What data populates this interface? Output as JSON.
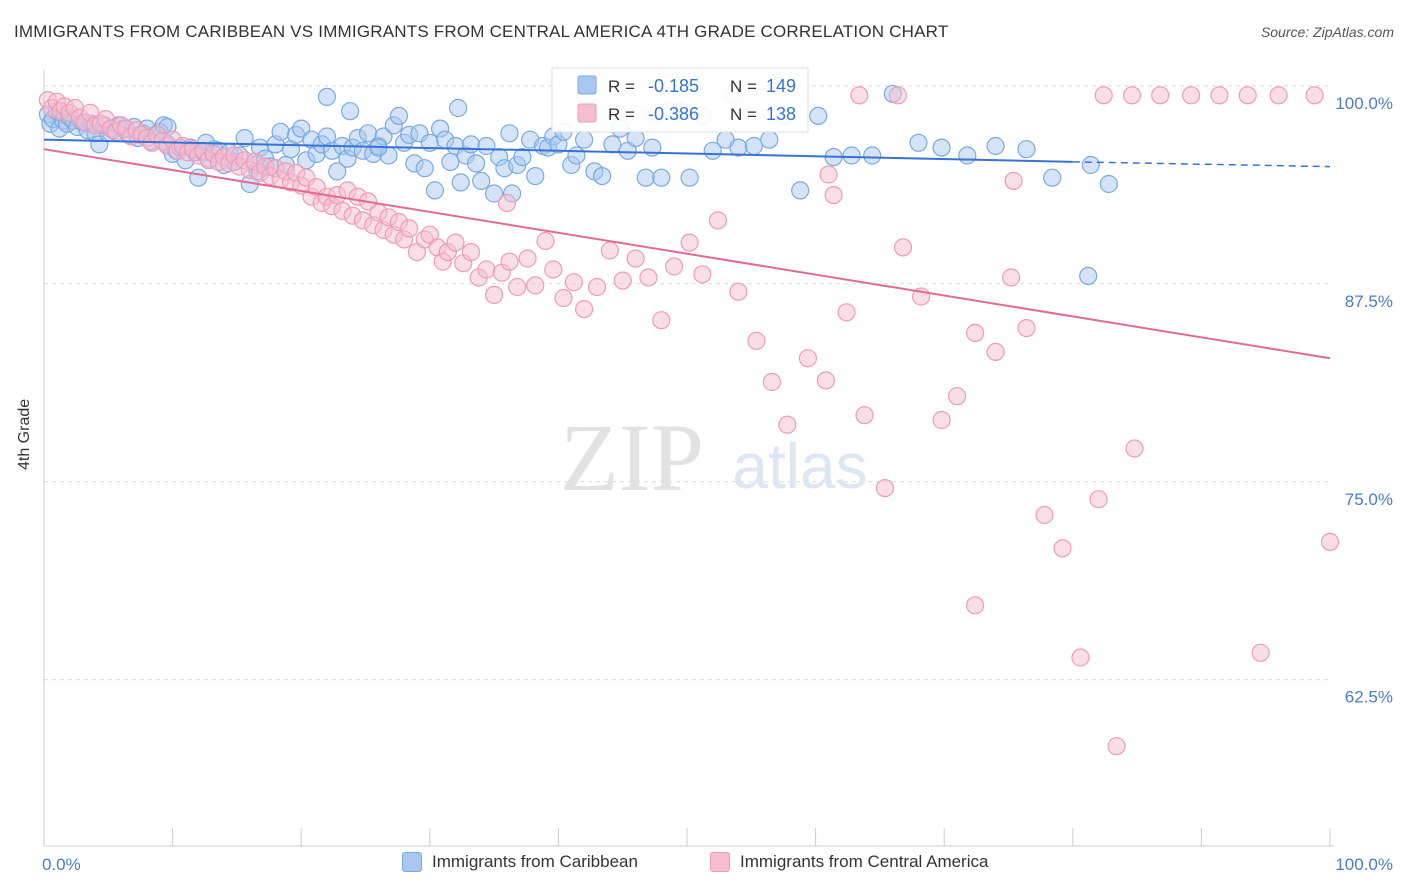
{
  "title": "IMMIGRANTS FROM CARIBBEAN VS IMMIGRANTS FROM CENTRAL AMERICA 4TH GRADE CORRELATION CHART",
  "source": "Source: ZipAtlas.com",
  "watermark": {
    "zip": "ZIP",
    "atlas": "atlas"
  },
  "colors": {
    "blue_fill": "#a9c8ef",
    "blue_stroke": "#7aaae0",
    "blue_line": "#3574d4",
    "pink_fill": "#f5bed0",
    "pink_stroke": "#ee9bb8",
    "pink_line": "#e26a94",
    "tick_label": "#4a7cc9",
    "grid": "#d9d9d9"
  },
  "legend": {
    "rows": [
      {
        "r_label": "R =",
        "r_value": "-0.185",
        "n_label": "N =",
        "n_value": "149"
      },
      {
        "r_label": "R =",
        "r_value": "-0.386",
        "n_label": "N =",
        "n_value": "138"
      }
    ]
  },
  "bottom_legend": [
    "Immigrants from Caribbean",
    "Immigrants from Central America"
  ],
  "chart_data": {
    "type": "scatter",
    "title": "IMMIGRANTS FROM CARIBBEAN VS IMMIGRANTS FROM CENTRAL AMERICA 4TH GRADE CORRELATION CHART",
    "xlabel": "",
    "ylabel": "4th Grade",
    "xlim": [
      0,
      100
    ],
    "ylim": [
      52,
      101
    ],
    "x_tick_labels": [
      "0.0%",
      "100.0%"
    ],
    "y_ticks": [
      100.0,
      87.5,
      75.0,
      62.5
    ],
    "y_tick_labels": [
      "100.0%",
      "87.5%",
      "75.0%",
      "62.5%"
    ],
    "grid": true,
    "legend_position": "top-center",
    "series": [
      {
        "name": "Immigrants from Caribbean",
        "color": "#a9c8ef",
        "R": -0.185,
        "N": 149,
        "trend": {
          "x": [
            0,
            80
          ],
          "y": [
            96.6,
            95.2
          ],
          "dashed_to": [
            100,
            94.9
          ]
        },
        "points": [
          [
            0.3,
            98.2
          ],
          [
            0.5,
            97.6
          ],
          [
            0.7,
            97.9
          ],
          [
            1.0,
            98.4
          ],
          [
            1.2,
            97.3
          ],
          [
            1.5,
            97.8
          ],
          [
            1.8,
            97.6
          ],
          [
            2.0,
            98.0
          ],
          [
            2.3,
            97.8
          ],
          [
            2.6,
            97.4
          ],
          [
            3.0,
            97.7
          ],
          [
            3.4,
            97.2
          ],
          [
            3.7,
            97.6
          ],
          [
            4.0,
            97.0
          ],
          [
            4.3,
            96.3
          ],
          [
            4.7,
            97.5
          ],
          [
            5.0,
            97.0
          ],
          [
            5.4,
            97.2
          ],
          [
            5.8,
            97.5
          ],
          [
            6.2,
            97.3
          ],
          [
            6.6,
            96.9
          ],
          [
            7.0,
            97.4
          ],
          [
            7.3,
            96.7
          ],
          [
            7.7,
            97.0
          ],
          [
            8.0,
            97.3
          ],
          [
            8.3,
            96.5
          ],
          [
            8.7,
            96.9
          ],
          [
            9.0,
            97.1
          ],
          [
            9.3,
            97.5
          ],
          [
            9.6,
            96.3
          ],
          [
            10.0,
            95.7
          ],
          [
            10.3,
            95.9
          ],
          [
            10.6,
            96.1
          ],
          [
            11.0,
            95.3
          ],
          [
            11.4,
            96.1
          ],
          [
            11.8,
            95.8
          ],
          [
            12.0,
            94.2
          ],
          [
            12.4,
            95.8
          ],
          [
            12.8,
            95.4
          ],
          [
            13.2,
            96.0
          ],
          [
            13.6,
            95.9
          ],
          [
            14.0,
            95.0
          ],
          [
            14.4,
            95.8
          ],
          [
            14.8,
            95.2
          ],
          [
            15.2,
            95.6
          ],
          [
            15.6,
            96.7
          ],
          [
            16.0,
            93.8
          ],
          [
            16.4,
            95.0
          ],
          [
            16.8,
            96.1
          ],
          [
            17.2,
            95.4
          ],
          [
            17.6,
            94.9
          ],
          [
            18.0,
            96.3
          ],
          [
            18.4,
            97.1
          ],
          [
            18.8,
            95.0
          ],
          [
            19.2,
            96.0
          ],
          [
            19.6,
            96.9
          ],
          [
            20.0,
            97.3
          ],
          [
            20.4,
            95.3
          ],
          [
            20.8,
            96.6
          ],
          [
            21.2,
            95.7
          ],
          [
            21.6,
            96.3
          ],
          [
            22.0,
            96.8
          ],
          [
            22.4,
            95.9
          ],
          [
            22.8,
            94.6
          ],
          [
            23.2,
            96.2
          ],
          [
            23.6,
            95.4
          ],
          [
            24.0,
            96.1
          ],
          [
            24.4,
            96.7
          ],
          [
            24.8,
            95.9
          ],
          [
            25.2,
            97.0
          ],
          [
            25.6,
            95.7
          ],
          [
            26.0,
            96.2
          ],
          [
            26.4,
            96.8
          ],
          [
            26.8,
            95.6
          ],
          [
            27.2,
            97.5
          ],
          [
            27.6,
            98.1
          ],
          [
            28.0,
            96.4
          ],
          [
            28.4,
            96.9
          ],
          [
            28.8,
            95.1
          ],
          [
            29.2,
            97.0
          ],
          [
            29.6,
            94.8
          ],
          [
            30.0,
            96.4
          ],
          [
            30.4,
            93.4
          ],
          [
            30.8,
            97.3
          ],
          [
            31.2,
            96.6
          ],
          [
            31.6,
            95.2
          ],
          [
            32.0,
            96.2
          ],
          [
            32.4,
            93.9
          ],
          [
            32.8,
            95.6
          ],
          [
            33.2,
            96.3
          ],
          [
            33.6,
            95.1
          ],
          [
            34.0,
            94.0
          ],
          [
            34.4,
            96.2
          ],
          [
            35.0,
            93.2
          ],
          [
            35.4,
            95.5
          ],
          [
            35.8,
            94.8
          ],
          [
            36.2,
            97.0
          ],
          [
            36.8,
            95.0
          ],
          [
            37.2,
            95.5
          ],
          [
            37.8,
            96.6
          ],
          [
            38.2,
            94.3
          ],
          [
            38.8,
            96.2
          ],
          [
            39.2,
            96.1
          ],
          [
            39.6,
            96.8
          ],
          [
            40.0,
            96.3
          ],
          [
            40.4,
            97.1
          ],
          [
            41.0,
            95.0
          ],
          [
            41.4,
            95.6
          ],
          [
            42.0,
            96.6
          ],
          [
            42.8,
            94.6
          ],
          [
            43.4,
            94.3
          ],
          [
            44.2,
            96.3
          ],
          [
            44.8,
            97.3
          ],
          [
            45.4,
            95.9
          ],
          [
            46.0,
            96.7
          ],
          [
            46.8,
            94.2
          ],
          [
            47.3,
            96.1
          ],
          [
            48.0,
            94.2
          ],
          [
            48.6,
            98.4
          ],
          [
            49.4,
            98.4
          ],
          [
            50.2,
            94.2
          ],
          [
            51.2,
            98.1
          ],
          [
            52.0,
            95.9
          ],
          [
            53.0,
            96.6
          ],
          [
            54.0,
            96.1
          ],
          [
            55.2,
            96.2
          ],
          [
            56.4,
            96.6
          ],
          [
            57.6,
            98.1
          ],
          [
            58.8,
            93.4
          ],
          [
            60.2,
            98.1
          ],
          [
            61.4,
            95.5
          ],
          [
            62.8,
            95.6
          ],
          [
            64.4,
            95.6
          ],
          [
            66.0,
            99.5
          ],
          [
            68.0,
            96.4
          ],
          [
            69.8,
            96.1
          ],
          [
            71.8,
            95.6
          ],
          [
            74.0,
            96.2
          ],
          [
            76.4,
            96.0
          ],
          [
            78.4,
            94.2
          ],
          [
            81.4,
            95.0
          ],
          [
            82.8,
            93.8
          ],
          [
            81.2,
            88.0
          ],
          [
            36.4,
            93.2
          ],
          [
            26.0,
            96.1
          ],
          [
            22.0,
            99.3
          ],
          [
            32.2,
            98.6
          ],
          [
            23.8,
            98.4
          ],
          [
            12.6,
            96.4
          ],
          [
            9.6,
            97.4
          ],
          [
            16.6,
            94.6
          ]
        ]
      },
      {
        "name": "Immigrants from Central America",
        "color": "#f5bed0",
        "R": -0.386,
        "N": 138,
        "trend": {
          "x": [
            0,
            100
          ],
          "y": [
            96.0,
            82.8
          ]
        },
        "points": [
          [
            0.3,
            99.1
          ],
          [
            0.6,
            98.6
          ],
          [
            1.0,
            99.0
          ],
          [
            1.3,
            98.4
          ],
          [
            1.6,
            98.7
          ],
          [
            2.0,
            98.3
          ],
          [
            2.4,
            98.6
          ],
          [
            2.8,
            98.0
          ],
          [
            3.2,
            97.7
          ],
          [
            3.6,
            98.3
          ],
          [
            4.0,
            97.5
          ],
          [
            4.4,
            97.6
          ],
          [
            4.8,
            97.9
          ],
          [
            5.2,
            97.3
          ],
          [
            5.6,
            97.1
          ],
          [
            6.0,
            97.5
          ],
          [
            6.4,
            97.3
          ],
          [
            6.8,
            96.8
          ],
          [
            7.2,
            97.2
          ],
          [
            7.6,
            96.9
          ],
          [
            8.0,
            96.7
          ],
          [
            8.4,
            96.4
          ],
          [
            8.8,
            96.9
          ],
          [
            9.2,
            96.5
          ],
          [
            9.6,
            96.2
          ],
          [
            10.0,
            96.6
          ],
          [
            10.4,
            95.9
          ],
          [
            10.8,
            96.2
          ],
          [
            11.2,
            95.8
          ],
          [
            11.6,
            96.0
          ],
          [
            12.0,
            95.6
          ],
          [
            12.4,
            95.9
          ],
          [
            12.8,
            95.3
          ],
          [
            13.2,
            95.7
          ],
          [
            13.6,
            95.2
          ],
          [
            14.0,
            95.5
          ],
          [
            14.4,
            95.1
          ],
          [
            14.8,
            95.6
          ],
          [
            15.2,
            94.9
          ],
          [
            15.6,
            95.3
          ],
          [
            16.0,
            94.7
          ],
          [
            16.4,
            95.2
          ],
          [
            16.8,
            94.5
          ],
          [
            17.2,
            94.9
          ],
          [
            17.6,
            94.3
          ],
          [
            18.0,
            94.8
          ],
          [
            18.4,
            94.1
          ],
          [
            18.8,
            94.6
          ],
          [
            19.2,
            93.9
          ],
          [
            19.6,
            94.5
          ],
          [
            20.0,
            93.7
          ],
          [
            20.4,
            94.2
          ],
          [
            20.8,
            93.0
          ],
          [
            21.2,
            93.6
          ],
          [
            21.6,
            92.6
          ],
          [
            22.0,
            93.0
          ],
          [
            22.4,
            92.4
          ],
          [
            22.8,
            93.1
          ],
          [
            23.2,
            92.1
          ],
          [
            23.6,
            93.4
          ],
          [
            24.0,
            91.8
          ],
          [
            24.4,
            93.0
          ],
          [
            24.8,
            91.5
          ],
          [
            25.2,
            92.7
          ],
          [
            25.6,
            91.2
          ],
          [
            26.0,
            92.0
          ],
          [
            26.4,
            90.9
          ],
          [
            26.8,
            91.7
          ],
          [
            27.2,
            90.6
          ],
          [
            27.6,
            91.4
          ],
          [
            28.0,
            90.3
          ],
          [
            28.4,
            91.0
          ],
          [
            29.0,
            89.5
          ],
          [
            29.6,
            90.3
          ],
          [
            30.0,
            90.6
          ],
          [
            30.6,
            89.8
          ],
          [
            31.0,
            88.9
          ],
          [
            31.4,
            89.5
          ],
          [
            32.0,
            90.1
          ],
          [
            32.6,
            88.8
          ],
          [
            33.2,
            89.5
          ],
          [
            33.8,
            87.9
          ],
          [
            34.4,
            88.4
          ],
          [
            35.0,
            86.8
          ],
          [
            35.6,
            88.2
          ],
          [
            36.2,
            88.9
          ],
          [
            36.8,
            87.3
          ],
          [
            37.6,
            89.1
          ],
          [
            38.2,
            87.4
          ],
          [
            39.0,
            90.2
          ],
          [
            39.6,
            88.4
          ],
          [
            40.4,
            86.6
          ],
          [
            41.2,
            87.6
          ],
          [
            42.0,
            85.9
          ],
          [
            43.0,
            87.3
          ],
          [
            44.0,
            89.6
          ],
          [
            45.0,
            87.7
          ],
          [
            46.0,
            89.1
          ],
          [
            47.0,
            87.9
          ],
          [
            48.0,
            85.2
          ],
          [
            49.0,
            88.6
          ],
          [
            50.2,
            90.1
          ],
          [
            51.2,
            88.1
          ],
          [
            52.4,
            91.5
          ],
          [
            54.0,
            87.0
          ],
          [
            55.4,
            83.9
          ],
          [
            56.6,
            81.3
          ],
          [
            57.8,
            78.6
          ],
          [
            59.4,
            82.8
          ],
          [
            60.8,
            81.4
          ],
          [
            62.4,
            85.7
          ],
          [
            63.8,
            79.2
          ],
          [
            65.4,
            74.6
          ],
          [
            66.8,
            89.8
          ],
          [
            68.2,
            86.7
          ],
          [
            69.8,
            78.9
          ],
          [
            71.0,
            80.4
          ],
          [
            72.4,
            84.4
          ],
          [
            74.0,
            83.2
          ],
          [
            75.2,
            87.9
          ],
          [
            76.4,
            84.7
          ],
          [
            77.8,
            72.9
          ],
          [
            79.2,
            70.8
          ],
          [
            80.6,
            63.9
          ],
          [
            82.0,
            73.9
          ],
          [
            83.4,
            58.3
          ],
          [
            84.8,
            77.1
          ],
          [
            86.8,
            99.4
          ],
          [
            89.2,
            99.4
          ],
          [
            91.4,
            99.4
          ],
          [
            93.6,
            99.4
          ],
          [
            96.0,
            99.4
          ],
          [
            98.8,
            99.4
          ],
          [
            100.0,
            71.2
          ],
          [
            47.4,
            98.2
          ],
          [
            53.6,
            99.4
          ],
          [
            63.4,
            99.4
          ],
          [
            66.4,
            99.4
          ],
          [
            72.4,
            67.2
          ],
          [
            94.6,
            64.2
          ],
          [
            61.4,
            93.1
          ],
          [
            36.0,
            92.6
          ],
          [
            75.4,
            94.0
          ],
          [
            82.4,
            99.4
          ],
          [
            84.6,
            99.4
          ],
          [
            61.0,
            94.4
          ]
        ]
      }
    ]
  }
}
